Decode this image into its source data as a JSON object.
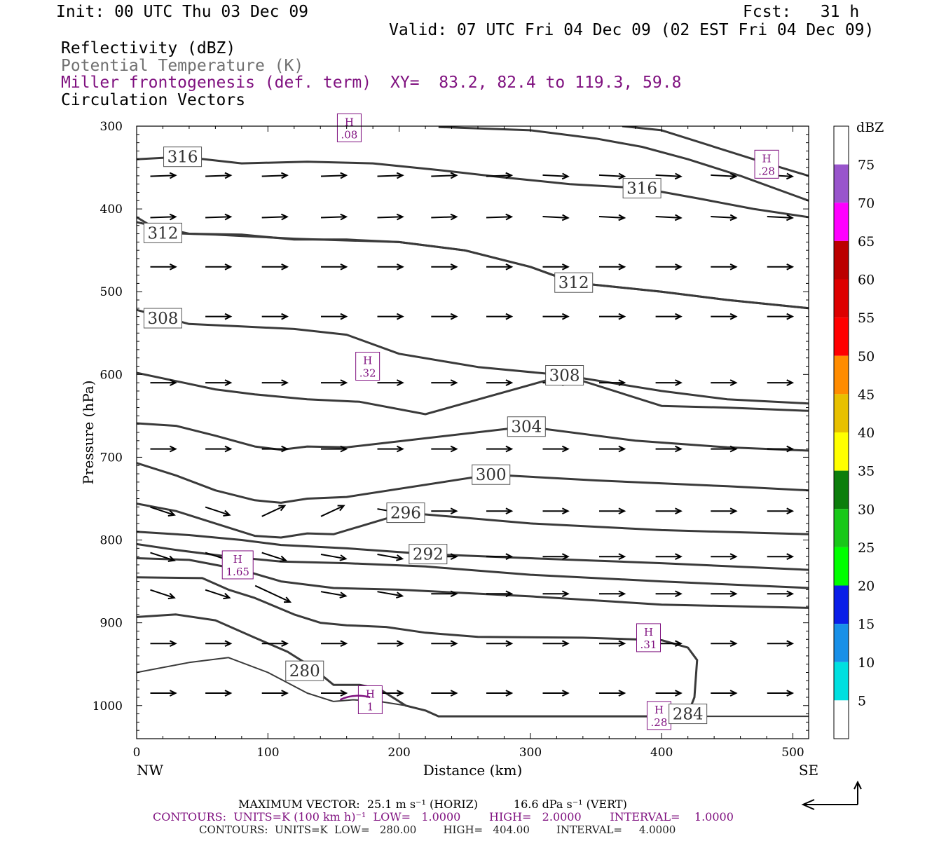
{
  "header": {
    "init": "Init: 00 UTC Thu 03 Dec 09",
    "fcst": "Fcst:   31 h",
    "valid": "Valid: 07 UTC Fri 04 Dec 09 (02 EST Fri 04 Dec 09)",
    "field1": "Reflectivity (dBZ)",
    "field2": "Potential Temperature (K)",
    "field3": "Miller frontogenesis (def. term)",
    "xy": "XY=  83.2, 82.4 to 119.3, 59.8",
    "field4": "Circulation Vectors"
  },
  "footer": {
    "max_vector": "MAXIMUM VECTOR:  25.1 m s⁻¹ (HORIZ)          16.6 dPa s⁻¹ (VERT)",
    "contours_fronto": "CONTOURS:  UNITS=K (100 km h)⁻¹  LOW=   1.0000        HIGH=   2.0000        INTERVAL=    1.0000",
    "contours_theta": "CONTOURS:  UNITS=K  LOW=   280.00        HIGH=   404.00        INTERVAL=     4.0000"
  },
  "colors": {
    "theta": "#3a3a3a",
    "fronto": "#7f107f",
    "axis": "#000000"
  },
  "colorbar": {
    "unit": "dBZ",
    "levels": [
      5,
      10,
      15,
      20,
      25,
      30,
      35,
      40,
      45,
      50,
      55,
      60,
      65,
      70,
      75
    ],
    "colors": [
      "#ffffff",
      "#00e0e0",
      "#1890e8",
      "#0a1ee8",
      "#00ff00",
      "#18c818",
      "#0c7e0c",
      "#ffff00",
      "#e8c000",
      "#ff8c00",
      "#ff0000",
      "#dd0000",
      "#bb0000",
      "#ff00ff",
      "#9955cc",
      "#ffffff"
    ]
  },
  "chart_data": {
    "type": "cross-section",
    "xlabel": "Distance (km)",
    "ylabel": "Pressure (hPa)",
    "xlim": [
      0,
      512
    ],
    "ylim": [
      1040,
      300
    ],
    "xticks": [
      0,
      100,
      200,
      300,
      400,
      500
    ],
    "yticks": [
      300,
      400,
      500,
      600,
      700,
      800,
      900,
      1000
    ],
    "x_end_labels": [
      "NW",
      "SE"
    ],
    "theta_contours": [
      {
        "label": "280",
        "label_pos": [
          128,
          958
        ],
        "points": [
          [
            0,
            960
          ],
          [
            40,
            948
          ],
          [
            70,
            942
          ],
          [
            100,
            960
          ],
          [
            130,
            985
          ],
          [
            150,
            995
          ],
          [
            165,
            993
          ],
          [
            185,
            995
          ],
          [
            205,
            1000
          ],
          [
            220,
            1006
          ],
          [
            230,
            1013
          ],
          [
            300,
            1013
          ],
          [
            400,
            1013
          ],
          [
            512,
            1013
          ]
        ]
      },
      {
        "label": "284",
        "label_pos": [
          420,
          1010
        ],
        "points": [
          [
            0,
            893
          ],
          [
            30,
            890
          ],
          [
            60,
            897
          ],
          [
            90,
            918
          ],
          [
            115,
            935
          ],
          [
            130,
            950
          ],
          [
            140,
            962
          ],
          [
            150,
            975
          ],
          [
            170,
            975
          ],
          [
            185,
            980
          ],
          [
            205,
            1000
          ],
          [
            220,
            1006
          ],
          [
            230,
            1013
          ],
          [
            300,
            1013
          ],
          [
            400,
            1013
          ],
          [
            420,
            1010
          ],
          [
            425,
            990
          ],
          [
            427,
            945
          ],
          [
            420,
            930
          ],
          [
            400,
            921
          ],
          [
            340,
            918
          ],
          [
            260,
            917
          ],
          [
            220,
            912
          ],
          [
            190,
            905
          ],
          [
            160,
            903
          ],
          [
            140,
            900
          ],
          [
            120,
            890
          ],
          [
            90,
            870
          ],
          [
            70,
            860
          ],
          [
            50,
            846
          ],
          [
            0,
            845
          ]
        ]
      },
      {
        "label": "",
        "label_pos": [
          0,
          0
        ],
        "points": [
          [
            0,
            822
          ],
          [
            40,
            824
          ],
          [
            80,
            836
          ],
          [
            110,
            850
          ],
          [
            150,
            858
          ],
          [
            200,
            860
          ],
          [
            300,
            868
          ],
          [
            400,
            878
          ],
          [
            512,
            882
          ]
        ]
      },
      {
        "label": "",
        "label_pos": [
          0,
          0
        ],
        "points": [
          [
            0,
            805
          ],
          [
            30,
            812
          ],
          [
            70,
            820
          ],
          [
            110,
            826
          ],
          [
            160,
            828
          ],
          [
            220,
            832
          ],
          [
            300,
            842
          ],
          [
            400,
            850
          ],
          [
            512,
            858
          ]
        ]
      },
      {
        "label": "292",
        "label_pos": [
          222,
          817
        ],
        "points": [
          [
            0,
            790
          ],
          [
            40,
            794
          ],
          [
            80,
            800
          ],
          [
            110,
            806
          ],
          [
            160,
            810
          ],
          [
            222,
            817
          ],
          [
            300,
            822
          ],
          [
            400,
            828
          ],
          [
            512,
            836
          ]
        ]
      },
      {
        "label": "296",
        "label_pos": [
          205,
          767
        ],
        "points": [
          [
            0,
            756
          ],
          [
            30,
            765
          ],
          [
            60,
            780
          ],
          [
            90,
            795
          ],
          [
            110,
            797
          ],
          [
            130,
            792
          ],
          [
            150,
            793
          ],
          [
            205,
            767
          ],
          [
            300,
            780
          ],
          [
            400,
            788
          ],
          [
            512,
            793
          ]
        ]
      },
      {
        "label": "300",
        "label_pos": [
          270,
          721
        ],
        "points": [
          [
            0,
            707
          ],
          [
            30,
            722
          ],
          [
            60,
            740
          ],
          [
            90,
            752
          ],
          [
            110,
            755
          ],
          [
            130,
            750
          ],
          [
            160,
            748
          ],
          [
            270,
            721
          ],
          [
            350,
            728
          ],
          [
            450,
            735
          ],
          [
            512,
            740
          ]
        ]
      },
      {
        "label": "304",
        "label_pos": [
          297,
          663
        ],
        "points": [
          [
            0,
            659
          ],
          [
            30,
            662
          ],
          [
            60,
            674
          ],
          [
            90,
            687
          ],
          [
            110,
            691
          ],
          [
            130,
            687
          ],
          [
            160,
            688
          ],
          [
            297,
            663
          ],
          [
            380,
            680
          ],
          [
            450,
            688
          ],
          [
            512,
            692
          ]
        ]
      },
      {
        "label": "308",
        "label_pos": [
          326,
          601
        ],
        "points": [
          [
            0,
            598
          ],
          [
            30,
            608
          ],
          [
            60,
            618
          ],
          [
            90,
            624
          ],
          [
            130,
            630
          ],
          [
            170,
            633
          ],
          [
            220,
            648
          ],
          [
            326,
            601
          ],
          [
            400,
            638
          ],
          [
            450,
            640
          ],
          [
            512,
            644
          ]
        ]
      },
      {
        "label": "308",
        "label_pos": [
          20,
          532
        ],
        "points": [
          [
            0,
            522
          ],
          [
            40,
            539
          ],
          [
            80,
            542
          ],
          [
            120,
            545
          ],
          [
            160,
            552
          ],
          [
            200,
            575
          ],
          [
            260,
            591
          ],
          [
            326,
            601
          ],
          [
            400,
            620
          ],
          [
            450,
            630
          ],
          [
            512,
            635
          ]
        ]
      },
      {
        "label": "312",
        "label_pos": [
          333,
          489
        ],
        "points": [
          [
            0,
            416
          ],
          [
            40,
            430
          ],
          [
            80,
            431
          ],
          [
            120,
            437
          ],
          [
            160,
            437
          ],
          [
            200,
            440
          ],
          [
            250,
            450
          ],
          [
            300,
            470
          ],
          [
            333,
            489
          ],
          [
            400,
            500
          ],
          [
            450,
            510
          ],
          [
            512,
            520
          ]
        ]
      },
      {
        "label": "312",
        "label_pos": [
          20,
          429
        ],
        "points": [
          [
            0,
            410
          ],
          [
            20,
            429
          ],
          [
            60,
            431
          ],
          [
            120,
            436
          ],
          [
            200,
            440
          ],
          [
            250,
            450
          ],
          [
            300,
            470
          ],
          [
            333,
            489
          ],
          [
            400,
            500
          ],
          [
            450,
            510
          ],
          [
            512,
            520
          ]
        ]
      },
      {
        "label": "316",
        "label_pos": [
          35,
          337
        ],
        "points": [
          [
            0,
            340
          ],
          [
            35,
            337
          ],
          [
            80,
            345
          ],
          [
            130,
            343
          ],
          [
            180,
            345
          ],
          [
            230,
            353
          ],
          [
            280,
            362
          ],
          [
            330,
            370
          ],
          [
            385,
            375
          ],
          [
            430,
            388
          ],
          [
            470,
            400
          ],
          [
            512,
            410
          ]
        ]
      },
      {
        "label": "316",
        "label_pos": [
          385,
          375
        ],
        "points": [
          [
            230,
            301
          ],
          [
            300,
            305
          ],
          [
            350,
            315
          ],
          [
            385,
            325
          ],
          [
            420,
            340
          ],
          [
            460,
            360
          ],
          [
            512,
            390
          ]
        ]
      },
      {
        "label": "",
        "label_pos": [
          0,
          0
        ],
        "points": [
          [
            370,
            300
          ],
          [
            400,
            305
          ],
          [
            430,
            320
          ],
          [
            470,
            340
          ],
          [
            512,
            360
          ]
        ]
      }
    ],
    "fronto_maxima": [
      {
        "label": ".08",
        "pos": [
          162,
          302
        ]
      },
      {
        "label": ".28",
        "pos": [
          480,
          346
        ]
      },
      {
        "label": ".32",
        "pos": [
          176,
          590
        ]
      },
      {
        "label": "1.65",
        "pos": [
          77,
          830
        ]
      },
      {
        "label": ".31",
        "pos": [
          390,
          918
        ]
      },
      {
        "label": "1",
        "pos": [
          178,
          993
        ]
      },
      {
        "label": ".28",
        "pos": [
          398,
          1012
        ]
      }
    ],
    "max_vector_horiz": "25.1 m s-1",
    "max_vector_vert": "16.6 dPa s-1"
  }
}
